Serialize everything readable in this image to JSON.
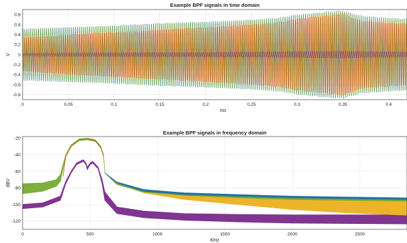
{
  "colors": {
    "blue": "#1f6ea8",
    "orange": "#d9541a",
    "yellow": "#ecb01f",
    "purple": "#7a2a8c",
    "green": "#76ab2f"
  },
  "chart_data": [
    {
      "type": "line",
      "title": "Example BPF signals in time domain",
      "xlabel": "ms",
      "ylabel": "V",
      "xlim": [
        0,
        0.42
      ],
      "ylim": [
        -0.9,
        0.9
      ],
      "xticks": [
        "0",
        "0.05",
        "0.1",
        "0.15",
        "0.2",
        "0.25",
        "0.3",
        "0.35",
        "0.4"
      ],
      "xtick_values": [
        0,
        0.05,
        0.1,
        0.15,
        0.2,
        0.25,
        0.3,
        0.35,
        0.4
      ],
      "yticks": [
        "-0.8",
        "-0.6",
        "-0.4",
        "-0.2",
        "0",
        "0.2",
        "0.4",
        "0.6",
        "0.8"
      ],
      "ytick_values": [
        -0.8,
        -0.6,
        -0.4,
        -0.2,
        0,
        0.2,
        0.4,
        0.6,
        0.8
      ],
      "grid": true,
      "envelope_t": [
        0,
        0.05,
        0.1,
        0.15,
        0.2,
        0.25,
        0.28,
        0.3,
        0.33,
        0.35,
        0.37,
        0.4,
        0.42
      ],
      "series": [
        {
          "color_key": "blue",
          "amplitude": [
            0.52,
            0.55,
            0.58,
            0.63,
            0.66,
            0.7,
            0.74,
            0.8,
            0.86,
            0.88,
            0.78,
            0.74,
            0.72
          ]
        },
        {
          "color_key": "green",
          "amplitude": [
            0.5,
            0.55,
            0.58,
            0.62,
            0.66,
            0.7,
            0.74,
            0.8,
            0.85,
            0.87,
            0.77,
            0.73,
            0.71
          ]
        },
        {
          "color_key": "yellow",
          "amplitude": [
            0.36,
            0.42,
            0.47,
            0.52,
            0.56,
            0.6,
            0.65,
            0.72,
            0.8,
            0.84,
            0.7,
            0.66,
            0.64
          ]
        },
        {
          "color_key": "orange",
          "amplitude": [
            0.34,
            0.4,
            0.45,
            0.5,
            0.55,
            0.6,
            0.65,
            0.72,
            0.78,
            0.82,
            0.68,
            0.64,
            0.62
          ]
        },
        {
          "color_key": "purple",
          "amplitude": [
            0.03,
            0.035,
            0.04,
            0.045,
            0.05,
            0.055,
            0.06,
            0.065,
            0.07,
            0.075,
            0.065,
            0.06,
            0.055
          ]
        }
      ]
    },
    {
      "type": "area",
      "title": "Example BPF signals in frequency domain",
      "xlabel": "KHz",
      "ylabel": "dBV",
      "xlim": [
        0,
        2850
      ],
      "ylim": [
        -130,
        -18
      ],
      "xticks": [
        "0",
        "500",
        "1000",
        "1500",
        "2000",
        "2500"
      ],
      "xtick_values": [
        0,
        500,
        1000,
        1500,
        2000,
        2500
      ],
      "yticks": [
        "-120",
        "-100",
        "-80",
        "-60",
        "-40",
        "-20"
      ],
      "ytick_values": [
        -120,
        -100,
        -80,
        -60,
        -40,
        -20
      ],
      "grid": true,
      "series": [
        {
          "color_key": "purple",
          "freq_khz": [
            0,
            150,
            280,
            320,
            360,
            400,
            450,
            470,
            480,
            500,
            520,
            560,
            590,
            610,
            700,
            900,
            1200,
            1600,
            2000,
            2400,
            2850
          ],
          "upper_db": [
            -100,
            -98,
            -90,
            -72,
            -60,
            -50,
            -46,
            -50,
            -55,
            -50,
            -48,
            -55,
            -70,
            -85,
            -103,
            -108,
            -111,
            -112,
            -112.5,
            -112.5,
            -112.5
          ],
          "lower_db": [
            -105,
            -103,
            -95,
            -75,
            -62,
            -52,
            -48,
            -52,
            -58,
            -52,
            -50,
            -57,
            -75,
            -95,
            -111,
            -116,
            -119,
            -121,
            -122.5,
            -123,
            -123.5
          ]
        },
        {
          "color_key": "yellow",
          "freq_khz": [
            610,
            700,
            900,
            1200,
            1600,
            2000,
            2400,
            2850
          ],
          "upper_db": [
            -62,
            -74,
            -84,
            -88,
            -90,
            -92,
            -93,
            -94
          ],
          "lower_db": [
            -62,
            -75,
            -86,
            -94,
            -100,
            -106,
            -110,
            -113
          ]
        },
        {
          "color_key": "green",
          "freq_khz": [
            0,
            150,
            250,
            280,
            320,
            360,
            420,
            480,
            540,
            580,
            600,
            610,
            700,
            900,
            1200,
            1600,
            2000,
            2400,
            2850
          ],
          "upper_db": [
            -75,
            -74,
            -70,
            -64,
            -40,
            -28,
            -21,
            -20,
            -22,
            -30,
            -40,
            -62,
            -74,
            -83,
            -87,
            -89,
            -91,
            -92,
            -93
          ],
          "lower_db": [
            -87,
            -84,
            -78,
            -72,
            -42,
            -30,
            -23,
            -22,
            -24,
            -32,
            -42,
            -62,
            -76,
            -85,
            -89,
            -92,
            -94,
            -95,
            -96
          ]
        },
        {
          "color_key": "orange",
          "freq_khz": [
            300,
            320,
            360,
            420,
            480,
            540,
            580,
            600
          ],
          "upper_db": [
            -66,
            -42,
            -30,
            -22,
            -21,
            -23,
            -31,
            -41
          ],
          "lower_db": [
            -66,
            -42,
            -30,
            -22,
            -21,
            -23,
            -31,
            -41
          ]
        },
        {
          "color_key": "blue",
          "freq_khz": [
            610,
            700,
            900,
            1200,
            1600,
            2000,
            2400,
            2850
          ],
          "upper_db": [
            -62,
            -73,
            -82,
            -86,
            -88,
            -90,
            -91,
            -92
          ],
          "lower_db": [
            -62,
            -74,
            -84,
            -88,
            -90,
            -92,
            -93,
            -94
          ]
        }
      ]
    }
  ]
}
